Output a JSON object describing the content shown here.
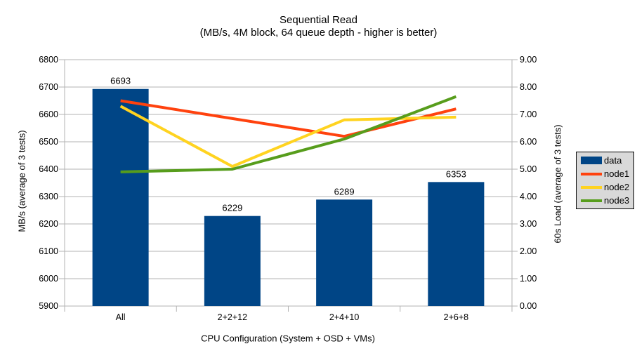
{
  "chart_data": {
    "type": "bar+line",
    "title": "Sequential Read",
    "subtitle": "(MB/s, 4M block, 64 queue depth - higher is better)",
    "xlabel": "CPU Configuration (System + OSD + VMs)",
    "ylabel_left": "MB/s (average of 3 tests)",
    "ylabel_right": "60s Load (average of 3 tests)",
    "categories": [
      "All",
      "2+2+12",
      "2+4+10",
      "2+6+8"
    ],
    "bar_series": {
      "name": "data",
      "color": "#004586",
      "axis": "left",
      "values": [
        6693,
        6229,
        6289,
        6353
      ],
      "labels": [
        "6693",
        "6229",
        "6289",
        "6353"
      ]
    },
    "line_series": [
      {
        "name": "node1",
        "color": "#ff420e",
        "axis": "right",
        "values": [
          7.5,
          6.85,
          6.2,
          7.2
        ]
      },
      {
        "name": "node2",
        "color": "#ffd320",
        "axis": "right",
        "values": [
          7.3,
          5.1,
          6.8,
          6.9
        ]
      },
      {
        "name": "node3",
        "color": "#579d1c",
        "axis": "right",
        "values": [
          4.9,
          5.0,
          6.1,
          7.65
        ]
      }
    ],
    "left_axis": {
      "min": 5900,
      "max": 6800,
      "step": 100,
      "tick_labels": [
        "5900",
        "6000",
        "6100",
        "6200",
        "6300",
        "6400",
        "6500",
        "6600",
        "6700",
        "6800"
      ]
    },
    "right_axis": {
      "min": 0,
      "max": 9,
      "step": 1,
      "tick_labels": [
        "0.00",
        "1.00",
        "2.00",
        "3.00",
        "4.00",
        "5.00",
        "6.00",
        "7.00",
        "8.00",
        "9.00"
      ]
    },
    "grid": {
      "horizontal": true,
      "axis_color": "#b3b3b3"
    },
    "legend": {
      "position": "right",
      "bg_color": "#d9d9d9",
      "entries": [
        {
          "label": "data",
          "color": "#004586",
          "type": "bar"
        },
        {
          "label": "node1",
          "color": "#ff420e",
          "type": "line"
        },
        {
          "label": "node2",
          "color": "#ffd320",
          "type": "line"
        },
        {
          "label": "node3",
          "color": "#579d1c",
          "type": "line"
        }
      ]
    }
  }
}
